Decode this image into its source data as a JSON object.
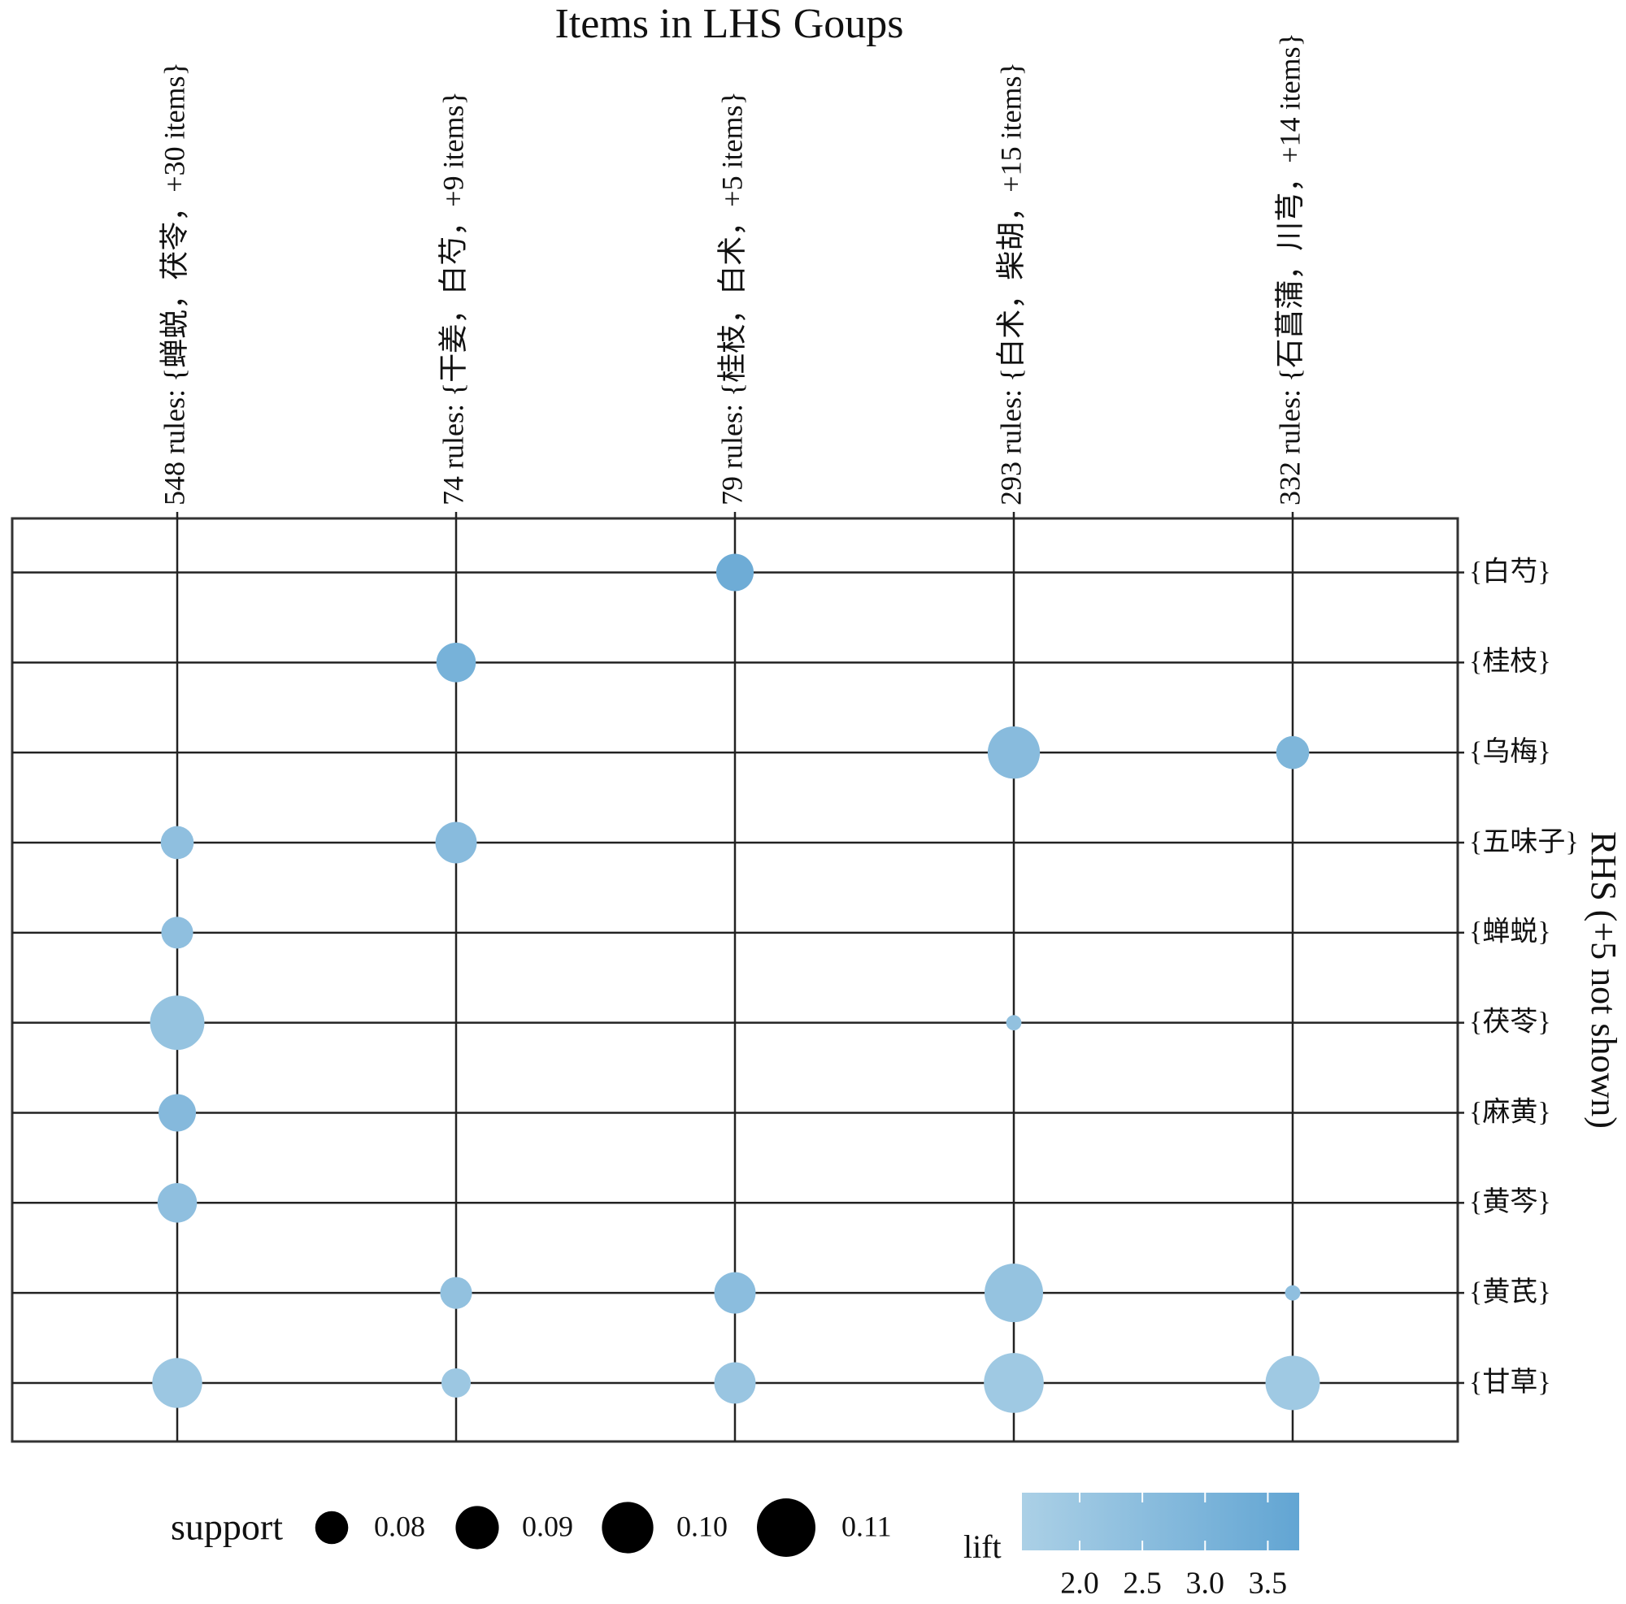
{
  "chart_data": {
    "type": "grouped-matrix",
    "title": "Items in LHS Goups",
    "y_axis_label": "RHS (+5 not shown)",
    "rows": [
      "{白芍}",
      "{桂枝}",
      "{乌梅}",
      "{五味子}",
      "{蝉蜕}",
      "{茯苓}",
      "{麻黄}",
      "{黄芩}",
      "{黄芪}",
      "{甘草}"
    ],
    "series": [
      {
        "name": "548 rules: {蝉蜕，茯苓，+30 items}",
        "support": [
          null,
          null,
          null,
          0.08,
          0.079,
          0.104,
          0.084,
          0.086,
          null,
          0.098
        ],
        "lift": [
          null,
          null,
          null,
          2.4,
          2.4,
          2.2,
          2.7,
          2.4,
          null,
          2.0
        ]
      },
      {
        "name": "74 rules: {干姜，白芍，+9 items}",
        "support": [
          null,
          0.086,
          null,
          0.088,
          null,
          null,
          null,
          null,
          0.079,
          0.077
        ],
        "lift": [
          null,
          3.1,
          null,
          2.6,
          null,
          null,
          null,
          null,
          2.3,
          2.0
        ]
      },
      {
        "name": "79 rules: {桂枝，白术，+5 items}",
        "support": [
          0.084,
          null,
          null,
          null,
          null,
          null,
          null,
          null,
          0.088,
          0.088
        ],
        "lift": [
          3.4,
          null,
          null,
          null,
          null,
          null,
          null,
          null,
          2.5,
          2.1
        ]
      },
      {
        "name": "293 rules: {白术，柴胡，+15 items}",
        "support": [
          null,
          null,
          0.101,
          null,
          null,
          0.069,
          null,
          null,
          0.11,
          0.112
        ],
        "lift": [
          null,
          null,
          2.6,
          null,
          null,
          2.3,
          null,
          null,
          2.2,
          1.9
        ]
      },
      {
        "name": "332 rules: {石菖蒲，川芎，+14 items}",
        "support": [
          null,
          null,
          0.08,
          null,
          null,
          null,
          null,
          null,
          0.069,
          0.104
        ],
        "lift": [
          null,
          null,
          2.9,
          null,
          null,
          null,
          null,
          null,
          2.4,
          1.9
        ]
      }
    ],
    "size_legend_title": "support",
    "size_lim": [
      0.066,
      0.11
    ],
    "size_ticks": [
      0.08,
      0.09,
      {
        "value": 0.1,
        "label": "0.10"
      },
      0.11
    ],
    "color_legend_title": "lift",
    "lift_lim": [
      1.54,
      3.75
    ],
    "lift_ticks": [
      {
        "value": 2,
        "label": "2.0"
      },
      2.5,
      {
        "value": 3,
        "label": "3.0"
      },
      3.5
    ],
    "lift_colors": [
      "#abd0e6",
      "#62a5d3"
    ],
    "size_legend_color": "#000000"
  }
}
